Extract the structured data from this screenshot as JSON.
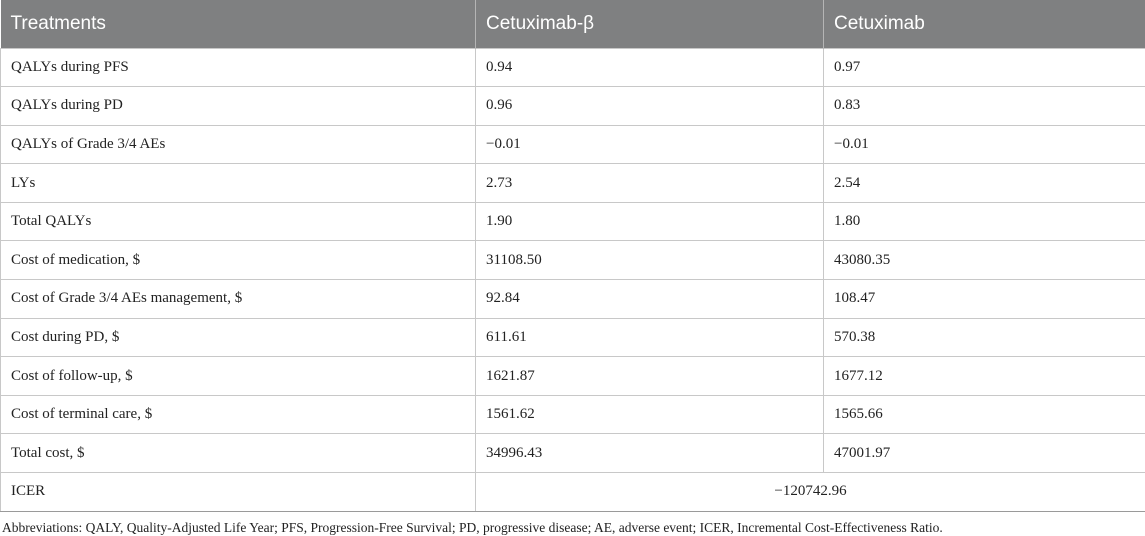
{
  "table": {
    "headers": [
      "Treatments",
      "Cetuximab-β",
      "Cetuximab"
    ],
    "rows": [
      [
        "QALYs during PFS",
        "0.94",
        "0.97"
      ],
      [
        "QALYs during PD",
        "0.96",
        "0.83"
      ],
      [
        "QALYs of Grade 3/4 AEs",
        "−0.01",
        "−0.01"
      ],
      [
        "LYs",
        "2.73",
        "2.54"
      ],
      [
        "Total QALYs",
        "1.90",
        "1.80"
      ],
      [
        "Cost of medication, $",
        "31108.50",
        "43080.35"
      ],
      [
        "Cost of Grade 3/4 AEs management, $",
        "92.84",
        "108.47"
      ],
      [
        "Cost during PD, $",
        "611.61",
        "570.38"
      ],
      [
        "Cost of follow-up, $",
        "1621.87",
        "1677.12"
      ],
      [
        "Cost of terminal care, $",
        "1561.62",
        "1565.66"
      ],
      [
        "Total cost, $",
        "34996.43",
        "47001.97"
      ]
    ],
    "icer_row": {
      "label": "ICER",
      "value": "−120742.96"
    }
  },
  "footnote": "Abbreviations: QALY, Quality-Adjusted Life Year; PFS, Progression-Free Survival; PD, progressive disease; AE, adverse event; ICER, Incremental Cost-Effectiveness Ratio."
}
